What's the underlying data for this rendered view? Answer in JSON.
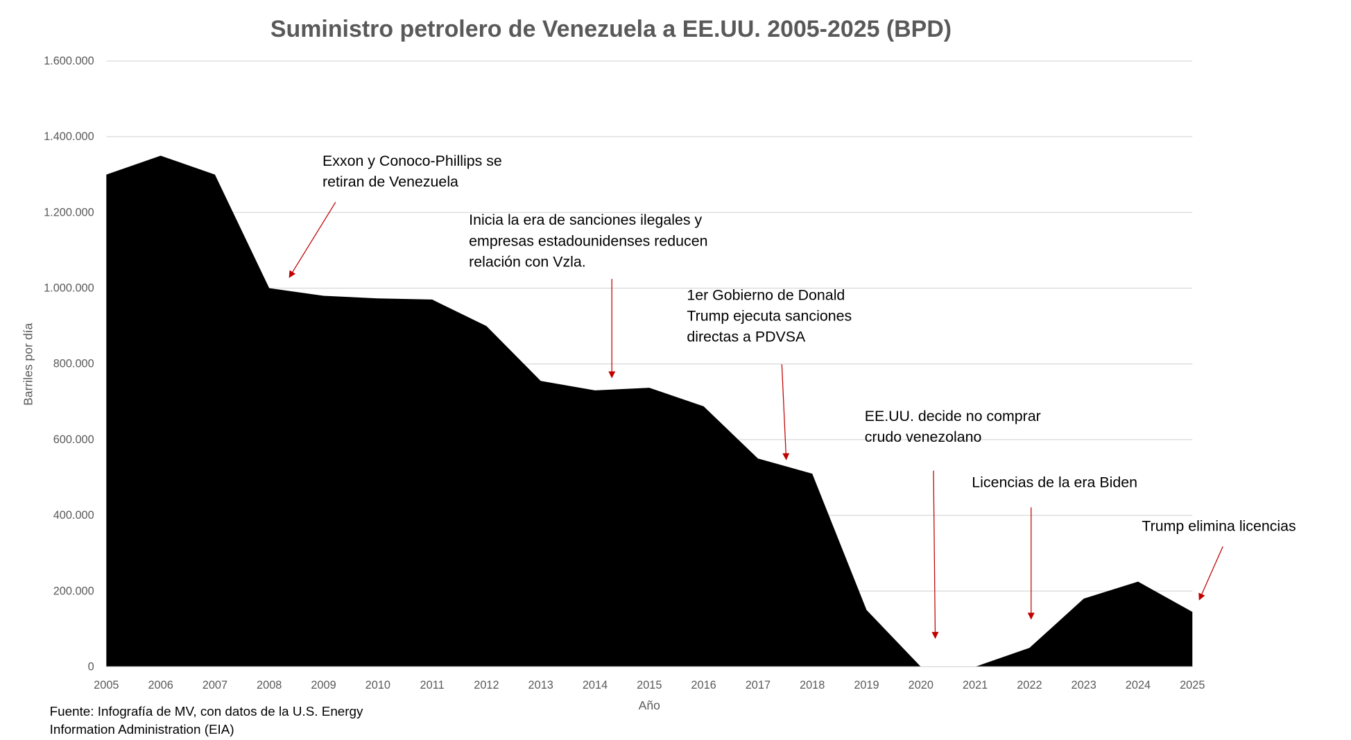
{
  "chart_data": {
    "type": "area",
    "title": "Suministro petrolero de Venezuela a EE.UU. 2005-2025 (BPD)",
    "xlabel": "Año",
    "ylabel": "Barriles por día",
    "ylim": [
      0,
      1600000
    ],
    "grid": true,
    "fill_color": "#000000",
    "arrow_color": "#c00000",
    "yticks": [
      {
        "value": 0,
        "label": "0"
      },
      {
        "value": 200000,
        "label": "200.000"
      },
      {
        "value": 400000,
        "label": "400.000"
      },
      {
        "value": 600000,
        "label": "600.000"
      },
      {
        "value": 800000,
        "label": "800.000"
      },
      {
        "value": 1000000,
        "label": "1.000.000"
      },
      {
        "value": 1200000,
        "label": "1.200.000"
      },
      {
        "value": 1400000,
        "label": "1.400.000"
      },
      {
        "value": 1600000,
        "label": "1.600.000"
      }
    ],
    "categories": [
      "2005",
      "2006",
      "2007",
      "2008",
      "2009",
      "2010",
      "2011",
      "2012",
      "2013",
      "2014",
      "2015",
      "2016",
      "2017",
      "2018",
      "2019",
      "2020",
      "2021",
      "2022",
      "2023",
      "2024",
      "2025"
    ],
    "values": [
      1300000,
      1350000,
      1300000,
      1000000,
      980000,
      973000,
      970000,
      900000,
      755000,
      730000,
      737000,
      688000,
      550000,
      510000,
      150000,
      0,
      0,
      50000,
      180000,
      225000,
      145000
    ],
    "annotations": [
      {
        "lines": [
          "Exxon y Conoco-Phillips se",
          "retiran de Venezuela"
        ]
      },
      {
        "lines": [
          "Inicia la era de sanciones ilegales y",
          "empresas estadounidenses reducen",
          "relación con Vzla."
        ]
      },
      {
        "lines": [
          "1er Gobierno de Donald",
          "Trump ejecuta sanciones",
          "directas a PDVSA"
        ]
      },
      {
        "lines": [
          "EE.UU. decide no comprar",
          "crudo venezolano"
        ]
      },
      {
        "lines": [
          "Licencias de la era Biden"
        ]
      },
      {
        "lines": [
          "Trump elimina licencias"
        ]
      }
    ],
    "source": [
      "Fuente: Infografía de MV, con datos de la U.S. Energy",
      "Information Administration (EIA)"
    ]
  }
}
